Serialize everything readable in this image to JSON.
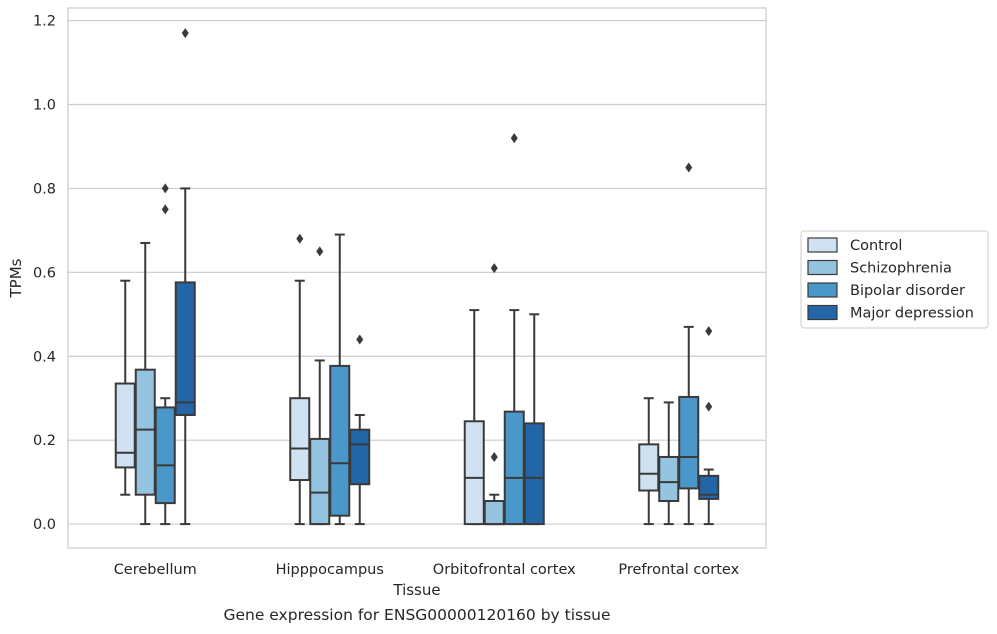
{
  "chart_data": {
    "type": "box",
    "xlabel": "Tissue",
    "ylabel": "TPMs",
    "caption": "Gene expression for ENSG00000120160 by tissue",
    "ylim": [
      -0.057,
      1.23
    ],
    "yticks": [
      "0.0",
      "0.2",
      "0.4",
      "0.6",
      "0.8",
      "1.0",
      "1.2"
    ],
    "grid": true,
    "legend_position": "right, outside plot",
    "categories": [
      "Cerebellum",
      "Hipppocampus",
      "Orbitofrontal cortex",
      "Prefrontal cortex"
    ],
    "series": [
      {
        "name": "Control",
        "color": "#d0e1f2",
        "boxes": [
          {
            "low": 0.07,
            "q1": 0.135,
            "median": 0.17,
            "q3": 0.335,
            "high": 0.58,
            "fliers": []
          },
          {
            "low": 0.0,
            "q1": 0.105,
            "median": 0.18,
            "q3": 0.3,
            "high": 0.58,
            "fliers": [
              0.68
            ]
          },
          {
            "low": 0.0,
            "q1": 0.0,
            "median": 0.11,
            "q3": 0.245,
            "high": 0.51,
            "fliers": []
          },
          {
            "low": 0.0,
            "q1": 0.08,
            "median": 0.12,
            "q3": 0.19,
            "high": 0.3,
            "fliers": []
          }
        ]
      },
      {
        "name": "Schizophrenia",
        "color": "#94c4df",
        "boxes": [
          {
            "low": 0.0,
            "q1": 0.07,
            "median": 0.225,
            "q3": 0.368,
            "high": 0.67,
            "fliers": []
          },
          {
            "low": 0.0,
            "q1": 0.0,
            "median": 0.075,
            "q3": 0.203,
            "high": 0.39,
            "fliers": [
              0.65
            ]
          },
          {
            "low": 0.0,
            "q1": 0.0,
            "median": 0.0,
            "q3": 0.055,
            "high": 0.07,
            "fliers": [
              0.16,
              0.61
            ]
          },
          {
            "low": 0.0,
            "q1": 0.055,
            "median": 0.1,
            "q3": 0.16,
            "high": 0.29,
            "fliers": []
          }
        ]
      },
      {
        "name": "Bipolar disorder",
        "color": "#4a98c9",
        "boxes": [
          {
            "low": 0.0,
            "q1": 0.05,
            "median": 0.14,
            "q3": 0.278,
            "high": 0.3,
            "fliers": [
              0.75,
              0.8
            ]
          },
          {
            "low": 0.0,
            "q1": 0.02,
            "median": 0.145,
            "q3": 0.377,
            "high": 0.69,
            "fliers": []
          },
          {
            "low": 0.0,
            "q1": 0.0,
            "median": 0.11,
            "q3": 0.268,
            "high": 0.51,
            "fliers": [
              0.92
            ]
          },
          {
            "low": 0.0,
            "q1": 0.085,
            "median": 0.16,
            "q3": 0.303,
            "high": 0.47,
            "fliers": [
              0.85
            ]
          }
        ]
      },
      {
        "name": "Major depression",
        "color": "#2366a8",
        "boxes": [
          {
            "low": 0.0,
            "q1": 0.26,
            "median": 0.29,
            "q3": 0.576,
            "high": 0.8,
            "fliers": [
              1.17
            ]
          },
          {
            "low": 0.0,
            "q1": 0.095,
            "median": 0.19,
            "q3": 0.225,
            "high": 0.26,
            "fliers": [
              0.44
            ]
          },
          {
            "low": 0.0,
            "q1": 0.0,
            "median": 0.11,
            "q3": 0.24,
            "high": 0.5,
            "fliers": []
          },
          {
            "low": 0.0,
            "q1": 0.06,
            "median": 0.07,
            "q3": 0.115,
            "high": 0.13,
            "fliers": [
              0.28,
              0.46
            ]
          }
        ]
      }
    ]
  }
}
